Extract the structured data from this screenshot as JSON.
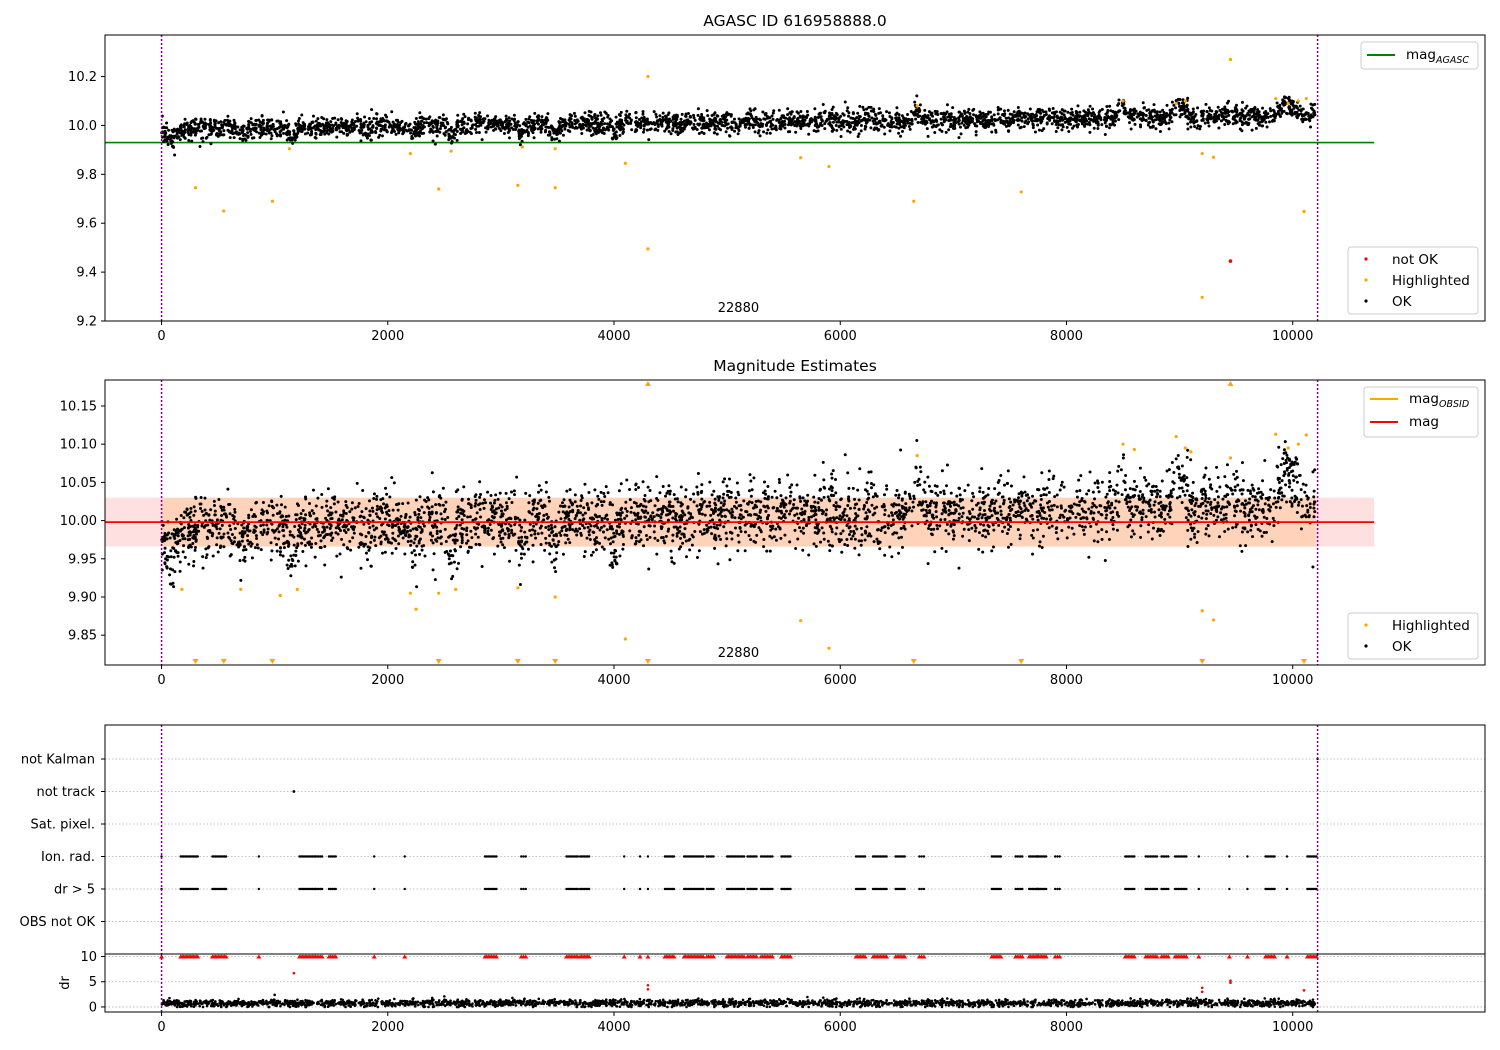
{
  "chart_data": [
    {
      "type": "scatter",
      "title": "AGASC ID 616958888.0",
      "xlim": [
        -500,
        11700
      ],
      "ylim": [
        9.2,
        10.37
      ],
      "x_ticks": [
        0,
        2000,
        4000,
        6000,
        8000,
        10000
      ],
      "y_ticks": [
        9.2,
        9.4,
        9.6,
        9.8,
        10.0,
        10.2
      ],
      "y_tick_labels": [
        "9.2",
        "9.4",
        "9.6",
        "9.8",
        "10.0",
        "10.2"
      ],
      "vlines": [
        0,
        10220
      ],
      "obsid_label": "22880",
      "obsid_label_x": 5100,
      "reference_line": {
        "label": "mag",
        "subscript": "AGASC",
        "value": 9.93,
        "x_range": [
          -500,
          10720
        ],
        "color": "#008000"
      },
      "baseline": {
        "x_range": [
          0,
          10200
        ],
        "start": 9.985,
        "end": 10.04,
        "spread": 0.022,
        "point_count": 3400
      },
      "dips": [
        {
          "x": 90,
          "depth": 0.04,
          "width": 100
        },
        {
          "x": 700,
          "depth": 0.035,
          "width": 60
        },
        {
          "x": 1150,
          "depth": 0.04,
          "width": 80
        },
        {
          "x": 2230,
          "depth": 0.03,
          "width": 60
        },
        {
          "x": 2560,
          "depth": 0.05,
          "width": 60
        },
        {
          "x": 3180,
          "depth": 0.045,
          "width": 60
        },
        {
          "x": 3480,
          "depth": 0.04,
          "width": 60
        },
        {
          "x": 4000,
          "depth": 0.03,
          "width": 60
        }
      ],
      "bumps": [
        {
          "x": 6680,
          "height": 0.05,
          "width": 60
        },
        {
          "x": 8500,
          "height": 0.05,
          "width": 80
        },
        {
          "x": 9000,
          "height": 0.05,
          "width": 120
        },
        {
          "x": 9950,
          "height": 0.06,
          "width": 120
        }
      ],
      "highlighted_points": [
        [
          300,
          9.745
        ],
        [
          550,
          9.65
        ],
        [
          980,
          9.69
        ],
        [
          2450,
          9.74
        ],
        [
          3150,
          9.755
        ],
        [
          3480,
          9.745
        ],
        [
          4100,
          9.845
        ],
        [
          4300,
          10.2
        ],
        [
          4300,
          9.495
        ],
        [
          5650,
          9.868
        ],
        [
          5900,
          9.832
        ],
        [
          6650,
          9.69
        ],
        [
          7600,
          9.728
        ],
        [
          9200,
          9.885
        ],
        [
          9300,
          9.87
        ],
        [
          9450,
          10.27
        ],
        [
          10100,
          9.648
        ],
        [
          1130,
          9.905
        ],
        [
          2200,
          9.885
        ],
        [
          2560,
          9.895
        ],
        [
          3190,
          9.912
        ],
        [
          3480,
          9.905
        ],
        [
          8500,
          10.1
        ],
        [
          8970,
          10.09
        ],
        [
          9050,
          10.1
        ],
        [
          9960,
          10.09
        ],
        [
          10050,
          10.1
        ],
        [
          10120,
          10.11
        ],
        [
          9850,
          10.11
        ],
        [
          6680,
          10.08
        ]
      ],
      "not_ok_points": [
        [
          9450,
          9.445
        ]
      ],
      "highlighted_extra_point": [
        9200,
        9.297
      ],
      "legend": [
        {
          "label": "not OK",
          "color": "#ff0000"
        },
        {
          "label": "Highlighted",
          "color": "#ffa500"
        },
        {
          "label": "OK",
          "color": "#000000"
        }
      ]
    },
    {
      "type": "scatter",
      "title": "Magnitude Estimates",
      "xlim": [
        -500,
        11700
      ],
      "ylim": [
        9.811,
        10.184
      ],
      "x_ticks": [
        0,
        2000,
        4000,
        6000,
        8000,
        10000
      ],
      "y_ticks": [
        9.85,
        9.9,
        9.95,
        10.0,
        10.05,
        10.1,
        10.15
      ],
      "y_tick_labels": [
        "9.85",
        "9.90",
        "9.95",
        "10.00",
        "10.05",
        "10.10",
        "10.15"
      ],
      "vlines": [
        0,
        10220
      ],
      "obsid_label": "22880",
      "obsid_label_x": 5100,
      "mag_line": {
        "label": "mag",
        "value": 9.998,
        "x_range": [
          -500,
          10720
        ],
        "color": "#ff0000"
      },
      "mag_band": {
        "low": 9.966,
        "high": 10.03,
        "x_range": [
          -500,
          10720
        ]
      },
      "obsid_band": {
        "low": 9.966,
        "high": 10.03,
        "x_range": [
          0,
          10200
        ]
      },
      "obsid_legend": {
        "label": "mag",
        "subscript": "OBSID",
        "color": "#ffa500"
      },
      "highlighted_points": [
        [
          180,
          9.91
        ],
        [
          700,
          9.91
        ],
        [
          1050,
          9.902
        ],
        [
          1200,
          9.91
        ],
        [
          2200,
          9.905
        ],
        [
          2250,
          9.884
        ],
        [
          2450,
          9.905
        ],
        [
          2600,
          9.91
        ],
        [
          3150,
          9.912
        ],
        [
          3480,
          9.9
        ],
        [
          4100,
          9.845
        ],
        [
          5650,
          9.869
        ],
        [
          5900,
          9.833
        ],
        [
          9200,
          9.882
        ],
        [
          9300,
          9.87
        ],
        [
          6680,
          10.085
        ],
        [
          8500,
          10.1
        ],
        [
          8970,
          10.11
        ],
        [
          9050,
          10.095
        ],
        [
          9100,
          10.09
        ],
        [
          9850,
          10.113
        ],
        [
          9960,
          10.095
        ],
        [
          10050,
          10.1
        ],
        [
          10120,
          10.112
        ],
        [
          9450,
          10.082
        ],
        [
          8600,
          10.093
        ]
      ],
      "clipped_top": [
        4300,
        9450
      ],
      "clipped_bottom": [
        300,
        550,
        980,
        2450,
        3150,
        3480,
        4300,
        6650,
        7600,
        9200,
        10100
      ],
      "legend": [
        {
          "label": "Highlighted",
          "color": "#ffa500"
        },
        {
          "label": "OK",
          "color": "#000000"
        }
      ]
    },
    {
      "type": "scatter",
      "title": "",
      "xlim": [
        -500,
        11700
      ],
      "categories": [
        "not Kalman",
        "not track",
        "Sat. pixel.",
        "Ion. rad.",
        "dr > 5",
        "OBS not OK"
      ],
      "x_ticks": [
        0,
        2000,
        4000,
        6000,
        8000,
        10000
      ],
      "vlines": [
        0,
        10220
      ],
      "flag_clusters": [
        [
          0,
          1
        ],
        [
          170,
          150
        ],
        [
          450,
          120
        ],
        [
          860,
          1
        ],
        [
          1220,
          140
        ],
        [
          1360,
          60
        ],
        [
          1480,
          60
        ],
        [
          1880,
          1
        ],
        [
          2150,
          1
        ],
        [
          2860,
          100
        ],
        [
          3180,
          40
        ],
        [
          3580,
          100
        ],
        [
          3700,
          80
        ],
        [
          4090,
          1
        ],
        [
          4230,
          1
        ],
        [
          4300,
          1
        ],
        [
          4450,
          80
        ],
        [
          4620,
          170
        ],
        [
          4820,
          60
        ],
        [
          5000,
          150
        ],
        [
          5180,
          80
        ],
        [
          5300,
          100
        ],
        [
          5480,
          80
        ],
        [
          6140,
          80
        ],
        [
          6290,
          120
        ],
        [
          6490,
          80
        ],
        [
          6700,
          40
        ],
        [
          7340,
          80
        ],
        [
          7550,
          60
        ],
        [
          7670,
          80
        ],
        [
          7740,
          80
        ],
        [
          7900,
          40
        ],
        [
          8520,
          80
        ],
        [
          8700,
          100
        ],
        [
          8840,
          60
        ],
        [
          8960,
          100
        ],
        [
          9170,
          1
        ],
        [
          9440,
          1
        ],
        [
          9600,
          1
        ],
        [
          9760,
          80
        ],
        [
          9950,
          1
        ],
        [
          10130,
          80
        ]
      ],
      "not_track_point": [
        1170,
        "not track"
      ],
      "not_kalman_point": [
        10220,
        "not Kalman"
      ]
    },
    {
      "type": "scatter",
      "title": "",
      "ylabel": "dr",
      "xlim": [
        -500,
        11700
      ],
      "ylim": [
        -1,
        10.5
      ],
      "y_ticks": [
        0,
        5,
        10
      ],
      "y_tick_labels": [
        "0",
        "5",
        "10"
      ],
      "x_ticks": [
        0,
        2000,
        4000,
        6000,
        8000,
        10000
      ],
      "x_tick_labels": [
        "0",
        "2000",
        "4000",
        "6000",
        "8000",
        "10000"
      ],
      "vlines": [
        0,
        10220
      ],
      "dr_baseline": {
        "x_range": [
          0,
          10200
        ],
        "mean": 0.75,
        "spread": 0.35,
        "point_count": 2600
      },
      "dr_outliers": [
        [
          1170,
          6.7
        ],
        [
          4300,
          4.3
        ],
        [
          4300,
          3.5
        ],
        [
          9200,
          3.8
        ],
        [
          9200,
          3.0
        ],
        [
          9450,
          5.2
        ],
        [
          9450,
          4.8
        ],
        [
          10100,
          3.3
        ],
        [
          1000,
          2.4
        ],
        [
          2500,
          2.1
        ]
      ],
      "clipped_value": 10
    }
  ]
}
